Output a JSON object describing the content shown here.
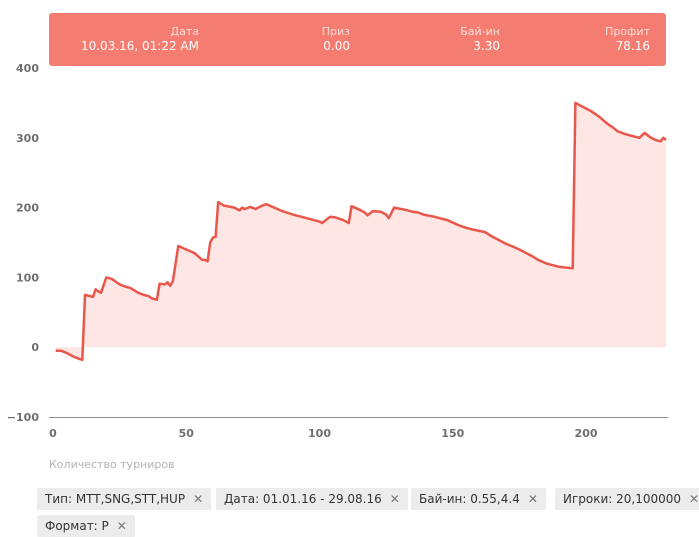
{
  "tooltip": {
    "columns": [
      {
        "label": "Дата",
        "value": "10.03.16, 01:22 AM"
      },
      {
        "label": "Приз",
        "value": "0.00"
      },
      {
        "label": "Бай-ин",
        "value": "3.30"
      },
      {
        "label": "Профит",
        "value": "78.16"
      }
    ]
  },
  "filters": [
    {
      "label": "Тип: MTT,SNG,STT,HUP",
      "close": "✕"
    },
    {
      "label": "Дата: 01.01.16 - 29.08.16",
      "close": "✕"
    },
    {
      "label": "Бай-ин: 0.55,4.4",
      "close": "✕"
    },
    {
      "label": "Игроки: 20,100000",
      "close": "✕"
    },
    {
      "label": "Формат: P",
      "close": "✕"
    }
  ],
  "chart_data": {
    "type": "area",
    "xlabel": "Количество турниров",
    "ylabel": "",
    "xlim": [
      0,
      230
    ],
    "ylim": [
      -100,
      400
    ],
    "x_ticks": [
      0,
      50,
      100,
      150,
      200
    ],
    "y_ticks": [
      400,
      300,
      200,
      100,
      0,
      -100
    ],
    "line_color": "#e9574b",
    "fill_color": "#fde6e3",
    "series": [
      {
        "x": [
          1,
          3,
          5,
          8,
          10,
          11,
          12,
          14,
          15,
          16,
          17,
          18,
          20,
          22,
          25,
          27,
          29,
          32,
          34,
          36,
          37,
          39,
          40,
          42,
          43,
          44,
          45,
          47,
          50,
          53,
          56,
          57,
          58,
          59,
          60,
          61,
          62,
          64,
          68,
          70,
          71,
          72,
          74,
          76,
          78,
          80,
          83,
          86,
          90,
          95,
          100,
          101,
          104,
          106,
          109,
          111,
          112,
          115,
          117,
          118,
          120,
          123,
          125,
          126,
          128,
          132,
          135,
          137,
          139,
          143,
          148,
          152,
          155,
          158,
          162,
          165,
          170,
          172,
          175,
          180,
          182,
          185,
          190,
          195,
          196,
          197,
          200,
          202,
          205,
          208,
          210,
          212,
          215,
          218,
          220,
          222,
          224,
          226,
          228,
          229,
          230
        ],
        "y": [
          -5,
          -5,
          -8,
          -14,
          -17,
          -18,
          75,
          73,
          72,
          83,
          80,
          78,
          100,
          98,
          90,
          87,
          85,
          78,
          75,
          73,
          70,
          68,
          91,
          90,
          93,
          88,
          95,
          145,
          140,
          135,
          125,
          125,
          123,
          150,
          157,
          158,
          208,
          203,
          200,
          196,
          200,
          198,
          201,
          198,
          202,
          205,
          200,
          195,
          190,
          185,
          180,
          178,
          187,
          186,
          182,
          178,
          202,
          197,
          193,
          189,
          195,
          194,
          190,
          185,
          200,
          197,
          194,
          193,
          190,
          187,
          182,
          175,
          171,
          168,
          165,
          158,
          148,
          145,
          140,
          130,
          125,
          120,
          115,
          113,
          350,
          348,
          342,
          338,
          330,
          320,
          315,
          309,
          305,
          302,
          300,
          307,
          301,
          297,
          295,
          300,
          297
        ]
      }
    ]
  }
}
